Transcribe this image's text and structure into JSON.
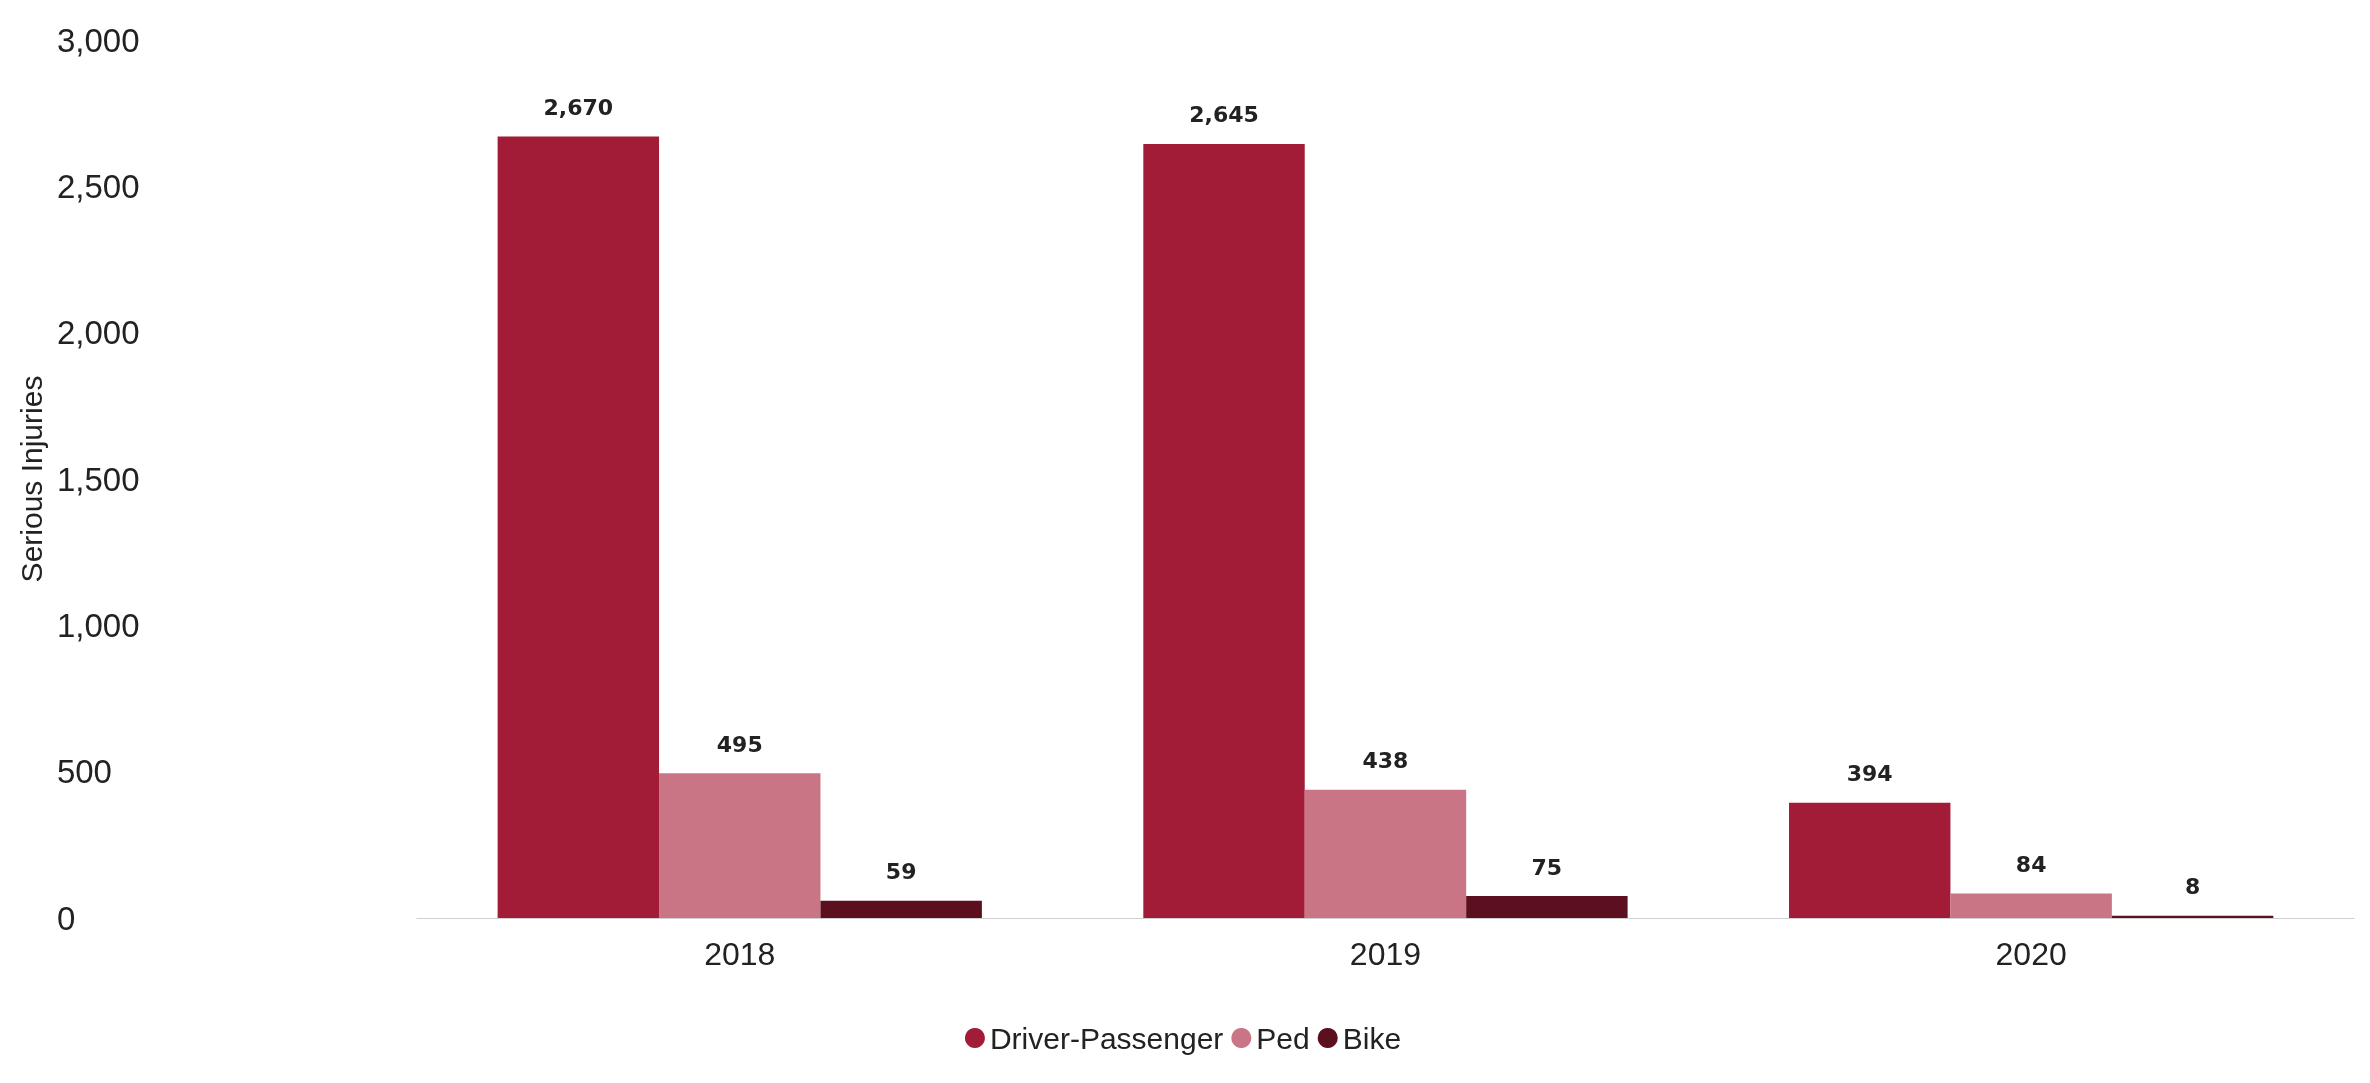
{
  "chart_data": {
    "type": "bar",
    "ylabel": "Serious Injuries",
    "categories": [
      "2018",
      "2019",
      "2020"
    ],
    "series": [
      {
        "name": "Driver-Passenger",
        "color": "#a31c37",
        "values": [
          2670,
          2645,
          394
        ],
        "value_labels": [
          "2,670",
          "2,645",
          "394"
        ]
      },
      {
        "name": "Ped",
        "color": "#c97585",
        "values": [
          495,
          438,
          84
        ],
        "value_labels": [
          "495",
          "438",
          "84"
        ]
      },
      {
        "name": "Bike",
        "color": "#5c0f1e",
        "values": [
          59,
          75,
          8
        ],
        "value_labels": [
          "59",
          "75",
          "8"
        ]
      }
    ],
    "ylim": [
      0,
      3000
    ],
    "yticks": [
      0,
      500,
      {
        "value": 1000,
        "label": "1,000"
      },
      {
        "value": 1500,
        "label": "1,500"
      },
      {
        "value": 2000,
        "label": "2,000"
      },
      {
        "value": 2500,
        "label": "2,500"
      },
      {
        "value": 3000,
        "label": "3,000"
      }
    ],
    "grid": false,
    "legend": "bottom"
  }
}
